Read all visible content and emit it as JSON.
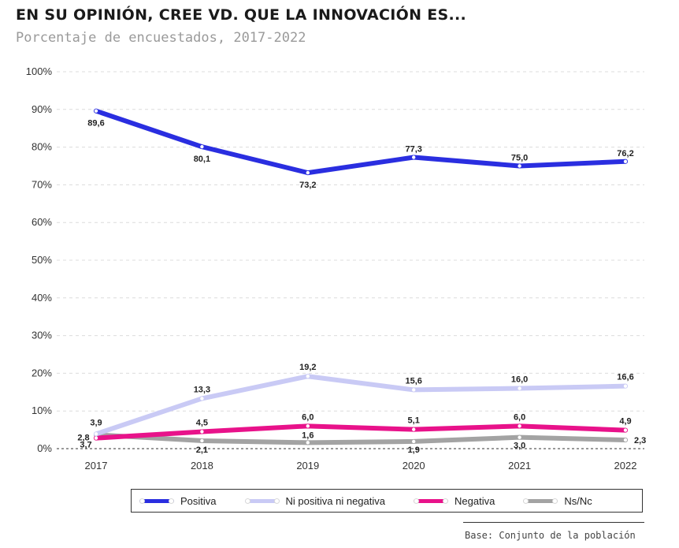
{
  "title": "EN SU OPINIÓN, CREE VD. QUE LA INNOVACIÓN ES...",
  "subtitle": "Porcentaje de encuestados, 2017-2022",
  "base_note": "Base: Conjunto de la población",
  "chart_data": {
    "type": "line",
    "title": "EN SU OPINIÓN, CREE VD. QUE LA INNOVACIÓN ES...",
    "subtitle": "Porcentaje de encuestados, 2017-2022",
    "categories": [
      "2017",
      "2018",
      "2019",
      "2020",
      "2021",
      "2022"
    ],
    "ylim": [
      0,
      100
    ],
    "yticks": [
      "0%",
      "10%",
      "20%",
      "30%",
      "40%",
      "50%",
      "60%",
      "70%",
      "80%",
      "90%",
      "100%"
    ],
    "grid": true,
    "legend_position": "bottom",
    "series": [
      {
        "name": "Positiva",
        "color": "#2a2ee0",
        "values": [
          89.6,
          80.1,
          73.2,
          77.3,
          75.0,
          76.2
        ],
        "labels": [
          "89,6",
          "80,1",
          "73,2",
          "77,3",
          "75,0",
          "76,2"
        ]
      },
      {
        "name": "Ni positiva ni negativa",
        "color": "#c9caf5",
        "values": [
          3.9,
          13.3,
          19.2,
          15.6,
          16.0,
          16.6
        ],
        "labels": [
          "3,9",
          "13,3",
          "19,2",
          "15,6",
          "16,0",
          "16,6"
        ]
      },
      {
        "name": "Negativa",
        "color": "#e8128a",
        "values": [
          2.8,
          4.5,
          6.0,
          5.1,
          6.0,
          4.9
        ],
        "labels": [
          "2,8",
          "4,5",
          "6,0",
          "5,1",
          "6,0",
          "4,9"
        ]
      },
      {
        "name": "Ns/Nc",
        "color": "#a3a3a3",
        "values": [
          3.7,
          2.1,
          1.6,
          1.9,
          3.0,
          2.3
        ],
        "labels": [
          "3,7",
          "2,1",
          "1,6",
          "1,9",
          "3,0",
          "2,3"
        ]
      }
    ]
  }
}
